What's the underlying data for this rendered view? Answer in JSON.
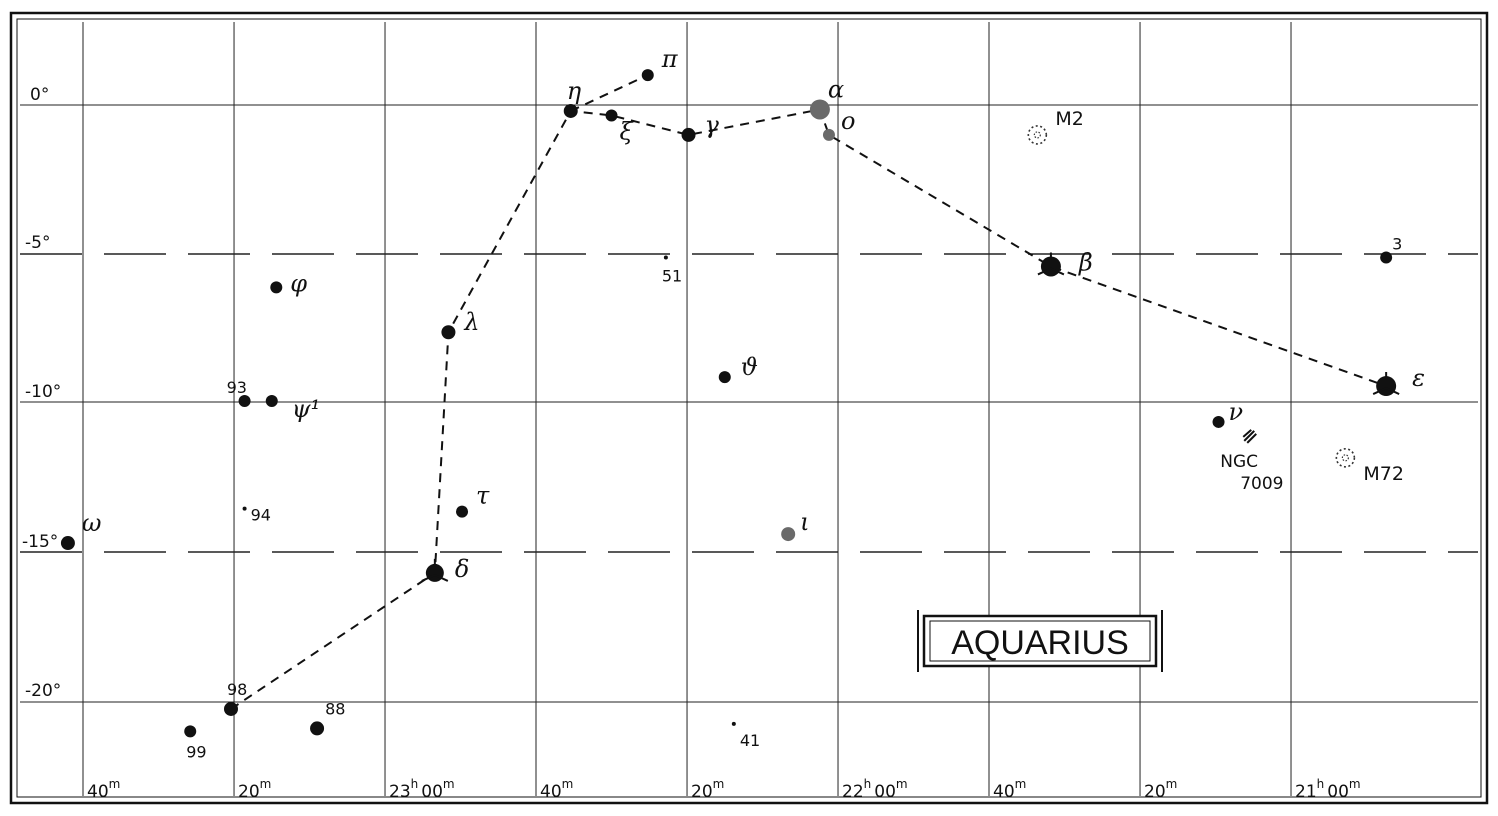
{
  "title": "AQUARIUS",
  "dec_labels": [
    {
      "id": "dec-0",
      "text": "0°",
      "dec": 0
    },
    {
      "id": "dec-5",
      "text": "-5°",
      "dec": -5
    },
    {
      "id": "dec-10",
      "text": "-10°",
      "dec": -10
    },
    {
      "id": "dec-15",
      "text": "-15°",
      "dec": -15
    },
    {
      "id": "dec-20",
      "text": "-20°",
      "dec": -20
    }
  ],
  "ra_labels": [
    {
      "id": "ra-2340",
      "major": "",
      "minor": "40",
      "unit": "m",
      "ra": 23.6667
    },
    {
      "id": "ra-2320",
      "major": "",
      "minor": "20",
      "unit": "m",
      "ra": 23.3333
    },
    {
      "id": "ra-2300",
      "major": "23",
      "minor": "00",
      "unit": "m",
      "ra": 23.0
    },
    {
      "id": "ra-2240",
      "major": "",
      "minor": "40",
      "unit": "m",
      "ra": 22.6667
    },
    {
      "id": "ra-2220",
      "major": "",
      "minor": "20",
      "unit": "m",
      "ra": 22.3333
    },
    {
      "id": "ra-2200",
      "major": "22",
      "minor": "00",
      "unit": "m",
      "ra": 22.0
    },
    {
      "id": "ra-2140",
      "major": "",
      "minor": "40",
      "unit": "m",
      "ra": 21.6667
    },
    {
      "id": "ra-2120",
      "major": "",
      "minor": "20",
      "unit": "m",
      "ra": 21.3333
    },
    {
      "id": "ra-2100",
      "major": "21",
      "minor": "00",
      "unit": "m",
      "ra": 21.0
    }
  ],
  "stars": [
    {
      "id": "eta",
      "label": "η",
      "ra": 22.59,
      "dec": -0.2,
      "mag": 3,
      "greek": true
    },
    {
      "id": "pi",
      "label": "π",
      "ra": 22.42,
      "dec": 1.0,
      "mag": 4,
      "greek": true
    },
    {
      "id": "xi",
      "label": "ξ",
      "ra": 22.5,
      "dec": -0.35,
      "mag": 4,
      "greek": true
    },
    {
      "id": "gamma",
      "label": "γ",
      "ra": 22.33,
      "dec": -1.0,
      "mag": 3,
      "greek": true
    },
    {
      "id": "alpha",
      "label": "α",
      "ra": 22.04,
      "dec": -0.15,
      "mag": 1,
      "greek": true
    },
    {
      "id": "omicron",
      "label": "ο",
      "ra": 22.02,
      "dec": -1.0,
      "mag": 4,
      "greek": true
    },
    {
      "id": "beta",
      "label": "β",
      "ra": 21.53,
      "dec": -5.4,
      "mag": 1,
      "greek": true
    },
    {
      "id": "epsilon",
      "label": "ε",
      "ra": 20.79,
      "dec": -9.4,
      "mag": 1,
      "greek": true
    },
    {
      "id": "nu",
      "label": "ν",
      "ra": 21.16,
      "dec": -10.6,
      "mag": 4,
      "greek": true
    },
    {
      "id": "s3",
      "label": "3",
      "ra": 20.79,
      "dec": -5.1,
      "mag": 4,
      "greek": false
    },
    {
      "id": "s51",
      "label": "51",
      "ra": 22.38,
      "dec": -5.1,
      "mag": 6,
      "greek": false
    },
    {
      "id": "theta",
      "label": "ϑ",
      "ra": 22.25,
      "dec": -9.1,
      "mag": 4,
      "greek": true
    },
    {
      "id": "lambda",
      "label": "λ",
      "ra": 22.86,
      "dec": -7.6,
      "mag": 3,
      "greek": true
    },
    {
      "id": "phi",
      "label": "φ",
      "ra": 23.24,
      "dec": -6.1,
      "mag": 4,
      "greek": true
    },
    {
      "id": "s93",
      "label": "93",
      "ra": 23.31,
      "dec": -9.9,
      "mag": 4,
      "greek": false
    },
    {
      "id": "psi1",
      "label": "ψ¹",
      "ra": 23.25,
      "dec": -9.9,
      "mag": 4,
      "greek": true
    },
    {
      "id": "tau",
      "label": "τ",
      "ra": 22.83,
      "dec": -13.6,
      "mag": 4,
      "greek": true
    },
    {
      "id": "s94",
      "label": "94",
      "ra": 23.31,
      "dec": -13.5,
      "mag": 6,
      "greek": false
    },
    {
      "id": "omega",
      "label": "ω",
      "ra": 23.7,
      "dec": -14.65,
      "mag": 3,
      "greek": true
    },
    {
      "id": "iota",
      "label": "ι",
      "ra": 22.11,
      "dec": -14.35,
      "mag": 3,
      "greek": true
    },
    {
      "id": "delta",
      "label": "δ",
      "ra": 22.89,
      "dec": -15.65,
      "mag": 2,
      "greek": true
    },
    {
      "id": "s98",
      "label": "98",
      "ra": 23.34,
      "dec": -20.2,
      "mag": 3,
      "greek": false
    },
    {
      "id": "s99",
      "label": "99",
      "ra": 23.43,
      "dec": -20.95,
      "mag": 4,
      "greek": false
    },
    {
      "id": "s88",
      "label": "88",
      "ra": 23.15,
      "dec": -20.85,
      "mag": 3,
      "greek": false
    },
    {
      "id": "s41",
      "label": "41",
      "ra": 22.23,
      "dec": -20.7,
      "mag": 6,
      "greek": false
    }
  ],
  "deep_sky": [
    {
      "id": "m2",
      "label": "M2",
      "ra": 21.56,
      "dec": -1.0,
      "kind": "cluster"
    },
    {
      "id": "ngc7009",
      "label": "NGC 7009",
      "label_lines": [
        "NGC",
        "7009"
      ],
      "ra": 21.09,
      "dec": -11.1,
      "kind": "nebula"
    },
    {
      "id": "m72",
      "label": "M72",
      "ra": 20.88,
      "dec": -11.8,
      "kind": "cluster"
    }
  ],
  "figure_lines": [
    [
      "s98",
      "delta",
      "lambda",
      "eta",
      "xi",
      "gamma",
      "alpha",
      "omicron",
      "beta",
      "epsilon"
    ],
    [
      "eta",
      "pi"
    ]
  ],
  "colors": {
    "ink": "#111111",
    "paper": "#ffffff",
    "grey_star": "#6a6a6a",
    "grid": "#222222"
  }
}
